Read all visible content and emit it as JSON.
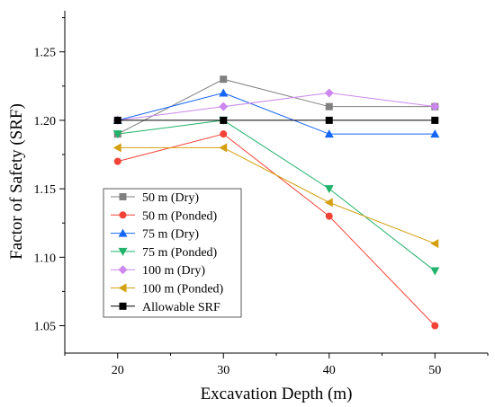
{
  "chart_data": {
    "type": "line",
    "xlabel": "Excavation Depth (m)",
    "ylabel": "Factor of Safety (SRF)",
    "x": [
      20,
      30,
      40,
      50
    ],
    "x_ticks": [
      "20",
      "30",
      "40",
      "50"
    ],
    "xlim": [
      15,
      55
    ],
    "ylim": [
      1.03,
      1.28
    ],
    "y_ticks": [
      "1.05",
      "1.10",
      "1.15",
      "1.20",
      "1.25"
    ],
    "y_tick_values": [
      1.05,
      1.1,
      1.15,
      1.2,
      1.25
    ],
    "grid": false,
    "legend_position": "bottom-left",
    "series": [
      {
        "name": "50 m (Dry)",
        "values": [
          1.19,
          1.23,
          1.21,
          1.21
        ],
        "color": "#808080",
        "marker": "square"
      },
      {
        "name": "50 m (Ponded)",
        "values": [
          1.17,
          1.19,
          1.13,
          1.05
        ],
        "color": "#f44336",
        "marker": "circle"
      },
      {
        "name": "75 m (Dry)",
        "values": [
          1.2,
          1.22,
          1.19,
          1.19
        ],
        "color": "#1565f5",
        "marker": "triangle-up"
      },
      {
        "name": "75 m (Ponded)",
        "values": [
          1.19,
          1.2,
          1.15,
          1.09
        ],
        "color": "#21b36b",
        "marker": "triangle-down"
      },
      {
        "name": "100 m (Dry)",
        "values": [
          1.2,
          1.21,
          1.22,
          1.21
        ],
        "color": "#cc88ee",
        "marker": "diamond"
      },
      {
        "name": "100 m (Ponded)",
        "values": [
          1.18,
          1.18,
          1.14,
          1.11
        ],
        "color": "#d4a010",
        "marker": "triangle-left"
      },
      {
        "name": "Allowable SRF",
        "values": [
          1.2,
          1.2,
          1.2,
          1.2
        ],
        "color": "#000000",
        "marker": "square"
      }
    ]
  }
}
